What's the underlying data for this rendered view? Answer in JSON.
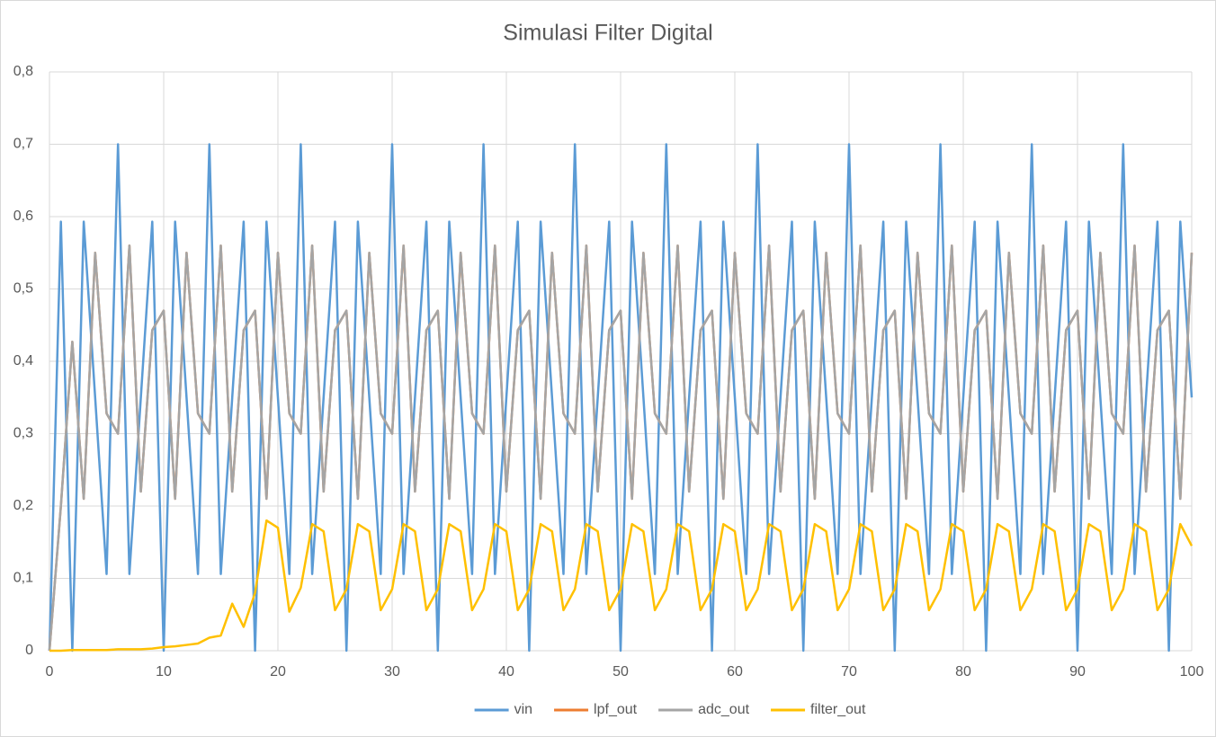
{
  "chart_data": {
    "type": "line",
    "title": "Simulasi Filter Digital",
    "x": [
      0,
      1,
      2,
      3,
      4,
      5,
      6,
      7,
      8,
      9,
      10,
      11,
      12,
      13,
      14,
      15,
      16,
      17,
      18,
      19,
      20,
      21,
      22,
      23,
      24,
      25,
      26,
      27,
      28,
      29,
      30,
      31,
      32,
      33,
      34,
      35,
      36,
      37,
      38,
      39,
      40,
      41,
      42,
      43,
      44,
      45,
      46,
      47,
      48,
      49,
      50,
      51,
      52,
      53,
      54,
      55,
      56,
      57,
      58,
      59,
      60,
      61,
      62,
      63,
      64,
      65,
      66,
      67,
      68,
      69,
      70,
      71,
      72,
      73,
      74,
      75,
      76,
      77,
      78,
      79,
      80,
      81,
      82,
      83,
      84,
      85,
      86,
      87,
      88,
      89,
      90,
      91,
      92,
      93,
      94,
      95,
      96,
      97,
      98,
      99,
      100
    ],
    "series": [
      {
        "name": "vin",
        "color": "#5b9bd5",
        "values": [
          0,
          0.593,
          0,
          0.593,
          0.35,
          0.106,
          0.7,
          0.106,
          0.35,
          0.593,
          0,
          0.593,
          0.35,
          0.106,
          0.7,
          0.106,
          0.35,
          0.593,
          0,
          0.593,
          0.35,
          0.106,
          0.7,
          0.106,
          0.35,
          0.593,
          0,
          0.593,
          0.35,
          0.106,
          0.7,
          0.106,
          0.35,
          0.593,
          0,
          0.593,
          0.35,
          0.106,
          0.7,
          0.106,
          0.35,
          0.593,
          0,
          0.593,
          0.35,
          0.106,
          0.7,
          0.106,
          0.35,
          0.593,
          0,
          0.593,
          0.35,
          0.106,
          0.7,
          0.106,
          0.35,
          0.593,
          0,
          0.593,
          0.35,
          0.106,
          0.7,
          0.106,
          0.35,
          0.593,
          0,
          0.593,
          0.35,
          0.106,
          0.7,
          0.106,
          0.35,
          0.593,
          0,
          0.593,
          0.35,
          0.106,
          0.7,
          0.106,
          0.35,
          0.593,
          0,
          0.593,
          0.35,
          0.106,
          0.7,
          0.106,
          0.35,
          0.593,
          0,
          0.593,
          0.35,
          0.106,
          0.7,
          0.106,
          0.35,
          0.593,
          0,
          0.593,
          0.35
        ]
      },
      {
        "name": "lpf_out",
        "color": "#ed7d31",
        "values": [
          0,
          0.2,
          0.427,
          0.21,
          0.55,
          0.328,
          0.3,
          0.56,
          0.22,
          0.443,
          0.47,
          0.21,
          0.55,
          0.328,
          0.3,
          0.56,
          0.22,
          0.443,
          0.47,
          0.21,
          0.55,
          0.328,
          0.3,
          0.56,
          0.22,
          0.443,
          0.47,
          0.21,
          0.55,
          0.328,
          0.3,
          0.56,
          0.22,
          0.443,
          0.47,
          0.21,
          0.55,
          0.328,
          0.3,
          0.56,
          0.22,
          0.443,
          0.47,
          0.21,
          0.55,
          0.328,
          0.3,
          0.56,
          0.22,
          0.443,
          0.47,
          0.21,
          0.55,
          0.328,
          0.3,
          0.56,
          0.22,
          0.443,
          0.47,
          0.21,
          0.55,
          0.328,
          0.3,
          0.56,
          0.22,
          0.443,
          0.47,
          0.21,
          0.55,
          0.328,
          0.3,
          0.56,
          0.22,
          0.443,
          0.47,
          0.21,
          0.55,
          0.328,
          0.3,
          0.56,
          0.22,
          0.443,
          0.47,
          0.21,
          0.55,
          0.328,
          0.3,
          0.56,
          0.22,
          0.443,
          0.47,
          0.21,
          0.55,
          0.328,
          0.3,
          0.56,
          0.22,
          0.443,
          0.47,
          0.21,
          0.55
        ]
      },
      {
        "name": "adc_out",
        "color": "#a5a5a5",
        "values": [
          0,
          0.2,
          0.427,
          0.21,
          0.55,
          0.328,
          0.3,
          0.56,
          0.22,
          0.443,
          0.47,
          0.21,
          0.55,
          0.328,
          0.3,
          0.56,
          0.22,
          0.443,
          0.47,
          0.21,
          0.55,
          0.328,
          0.3,
          0.56,
          0.22,
          0.443,
          0.47,
          0.21,
          0.55,
          0.328,
          0.3,
          0.56,
          0.22,
          0.443,
          0.47,
          0.21,
          0.55,
          0.328,
          0.3,
          0.56,
          0.22,
          0.443,
          0.47,
          0.21,
          0.55,
          0.328,
          0.3,
          0.56,
          0.22,
          0.443,
          0.47,
          0.21,
          0.55,
          0.328,
          0.3,
          0.56,
          0.22,
          0.443,
          0.47,
          0.21,
          0.55,
          0.328,
          0.3,
          0.56,
          0.22,
          0.443,
          0.47,
          0.21,
          0.55,
          0.328,
          0.3,
          0.56,
          0.22,
          0.443,
          0.47,
          0.21,
          0.55,
          0.328,
          0.3,
          0.56,
          0.22,
          0.443,
          0.47,
          0.21,
          0.55,
          0.328,
          0.3,
          0.56,
          0.22,
          0.443,
          0.47,
          0.21,
          0.55,
          0.328,
          0.3,
          0.56,
          0.22,
          0.443,
          0.47,
          0.21,
          0.55
        ]
      },
      {
        "name": "filter_out",
        "color": "#ffc000",
        "values": [
          0,
          0,
          0.001,
          0.001,
          0.001,
          0.001,
          0.002,
          0.002,
          0.002,
          0.003,
          0.005,
          0.006,
          0.008,
          0.01,
          0.018,
          0.021,
          0.065,
          0.033,
          0.08,
          0.18,
          0.17,
          0.054,
          0.087,
          0.175,
          0.165,
          0.056,
          0.085,
          0.175,
          0.165,
          0.056,
          0.085,
          0.175,
          0.165,
          0.056,
          0.085,
          0.175,
          0.165,
          0.056,
          0.085,
          0.175,
          0.165,
          0.056,
          0.085,
          0.175,
          0.165,
          0.056,
          0.085,
          0.175,
          0.165,
          0.056,
          0.085,
          0.175,
          0.165,
          0.056,
          0.085,
          0.175,
          0.165,
          0.056,
          0.085,
          0.175,
          0.165,
          0.056,
          0.085,
          0.175,
          0.165,
          0.056,
          0.085,
          0.175,
          0.165,
          0.056,
          0.085,
          0.175,
          0.165,
          0.056,
          0.085,
          0.175,
          0.165,
          0.056,
          0.085,
          0.175,
          0.165,
          0.056,
          0.085,
          0.175,
          0.165,
          0.056,
          0.085,
          0.175,
          0.165,
          0.056,
          0.085,
          0.175,
          0.165,
          0.056,
          0.085,
          0.175,
          0.165,
          0.056,
          0.085,
          0.175,
          0.145
        ]
      }
    ],
    "xlim": [
      0,
      100
    ],
    "xticks": [
      0,
      10,
      20,
      30,
      40,
      50,
      60,
      70,
      80,
      90,
      100
    ],
    "ylim": [
      0,
      0.8
    ],
    "yticks": [
      0,
      {
        "value": 0.1,
        "label": "0,1"
      },
      {
        "value": 0.2,
        "label": "0,2"
      },
      {
        "value": 0.3,
        "label": "0,3"
      },
      {
        "value": 0.4,
        "label": "0,4"
      },
      {
        "value": 0.5,
        "label": "0,5"
      },
      {
        "value": 0.6,
        "label": "0,6"
      },
      {
        "value": 0.7,
        "label": "0,7"
      },
      {
        "value": 0.8,
        "label": "0,8"
      }
    ],
    "grid": true,
    "legend": "bottom"
  }
}
